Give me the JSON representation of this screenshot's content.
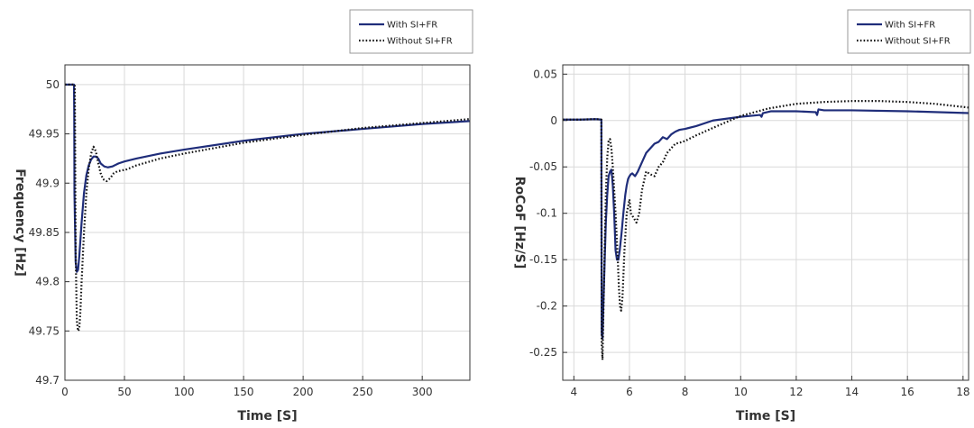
{
  "chart_data": [
    {
      "type": "line",
      "xlabel": "Time [S]",
      "ylabel": "Frequency [Hz]",
      "xlim": [
        0,
        340
      ],
      "ylim": [
        49.7,
        50.02
      ],
      "xticks": [
        0,
        50,
        100,
        150,
        200,
        250,
        300
      ],
      "yticks": [
        49.7,
        49.75,
        49.8,
        49.85,
        49.9,
        49.95,
        50
      ],
      "ytick_labels": [
        "49.7",
        "49.75",
        "49.8",
        "49.85",
        "49.9",
        "49.95",
        "50"
      ],
      "grid": true,
      "legend_position": "top-right-outside",
      "colors": {
        "with": "#1f2d7a",
        "without": "#111111"
      },
      "series": [
        {
          "name": "With SI+FR",
          "style": "solid",
          "x": [
            0,
            7.6,
            7.8,
            8,
            9,
            10,
            11,
            12,
            14,
            16,
            18,
            20,
            22,
            24,
            26,
            28,
            30,
            33,
            36,
            40,
            45,
            50,
            60,
            80,
            100,
            150,
            200,
            250,
            300,
            340
          ],
          "y": [
            50,
            50,
            49.97,
            49.89,
            49.82,
            49.81,
            49.812,
            49.825,
            49.86,
            49.89,
            49.908,
            49.918,
            49.924,
            49.927,
            49.927,
            49.925,
            49.92,
            49.917,
            49.916,
            49.917,
            49.92,
            49.922,
            49.925,
            49.93,
            49.934,
            49.943,
            49.95,
            49.955,
            49.96,
            49.963
          ]
        },
        {
          "name": "Without SI+FR",
          "style": "dotted",
          "x": [
            0,
            8.3,
            8.6,
            9,
            10,
            11,
            12,
            13,
            14,
            16,
            18,
            20,
            22,
            24,
            26,
            28,
            30,
            32,
            35,
            38,
            41,
            44,
            48,
            52,
            60,
            80,
            100,
            150,
            200,
            250,
            300,
            340
          ],
          "y": [
            50,
            50,
            49.93,
            49.83,
            49.76,
            49.75,
            49.752,
            49.77,
            49.8,
            49.85,
            49.89,
            49.915,
            49.93,
            49.937,
            49.932,
            49.92,
            49.91,
            49.904,
            49.902,
            49.905,
            49.91,
            49.912,
            49.913,
            49.914,
            49.918,
            49.925,
            49.93,
            49.941,
            49.949,
            49.956,
            49.961,
            49.965
          ]
        }
      ]
    },
    {
      "type": "line",
      "xlabel": "Time [S]",
      "ylabel": "RoCoF [Hz/S]",
      "xlim": [
        3.6,
        18.2
      ],
      "ylim": [
        -0.28,
        0.06
      ],
      "xticks": [
        4,
        6,
        8,
        10,
        12,
        14,
        16,
        18
      ],
      "yticks": [
        -0.25,
        -0.2,
        -0.15,
        -0.1,
        -0.05,
        0,
        0.05
      ],
      "ytick_labels": [
        "-0.25",
        "-0.2",
        "-0.15",
        "-0.1",
        "-0.05",
        "0",
        "0.05"
      ],
      "grid": true,
      "legend_position": "top-right-outside",
      "colors": {
        "with": "#1f2d7a",
        "without": "#111111"
      },
      "series": [
        {
          "name": "With SI+FR",
          "style": "solid",
          "x": [
            3.6,
            4.2,
            4.8,
            4.99,
            5.0,
            5.03,
            5.06,
            5.1,
            5.15,
            5.2,
            5.25,
            5.3,
            5.35,
            5.4,
            5.45,
            5.5,
            5.55,
            5.6,
            5.65,
            5.72,
            5.78,
            5.85,
            5.9,
            5.95,
            6.0,
            6.05,
            6.1,
            6.2,
            6.3,
            6.45,
            6.6,
            6.75,
            6.9,
            7.05,
            7.2,
            7.35,
            7.5,
            7.65,
            7.8,
            8.0,
            8.4,
            9.0,
            10.0,
            10.7,
            10.75,
            10.8,
            11.1,
            11.4,
            12.0,
            12.7,
            12.75,
            12.8,
            13.0,
            14.0,
            16.0,
            18.2
          ],
          "y": [
            0.001,
            0.001,
            0.0015,
            0.001,
            -0.23,
            -0.235,
            -0.2,
            -0.16,
            -0.11,
            -0.08,
            -0.06,
            -0.055,
            -0.053,
            -0.07,
            -0.1,
            -0.14,
            -0.15,
            -0.15,
            -0.14,
            -0.12,
            -0.1,
            -0.08,
            -0.07,
            -0.063,
            -0.06,
            -0.058,
            -0.057,
            -0.06,
            -0.055,
            -0.045,
            -0.035,
            -0.03,
            -0.025,
            -0.023,
            -0.018,
            -0.02,
            -0.015,
            -0.012,
            -0.01,
            -0.009,
            -0.006,
            0.0,
            0.004,
            0.006,
            0.004,
            0.008,
            0.01,
            0.01,
            0.01,
            0.009,
            0.006,
            0.012,
            0.011,
            0.011,
            0.01,
            0.008
          ]
        },
        {
          "name": "Without SI+FR",
          "style": "dotted",
          "x": [
            3.6,
            4.2,
            4.8,
            4.99,
            5.0,
            5.03,
            5.06,
            5.1,
            5.15,
            5.2,
            5.25,
            5.3,
            5.35,
            5.4,
            5.5,
            5.58,
            5.62,
            5.66,
            5.7,
            5.75,
            5.82,
            5.9,
            6.0,
            6.05,
            6.15,
            6.25,
            6.35,
            6.45,
            6.6,
            6.75,
            6.9,
            7.05,
            7.2,
            7.35,
            7.5,
            7.65,
            7.8,
            8.0,
            8.4,
            9.0,
            10.0,
            11.0,
            12.0,
            13.0,
            14.0,
            15.0,
            16.0,
            17.0,
            18.2
          ],
          "y": [
            0.001,
            0.001,
            0.0015,
            0.001,
            -0.24,
            -0.258,
            -0.21,
            -0.15,
            -0.08,
            -0.04,
            -0.022,
            -0.02,
            -0.03,
            -0.05,
            -0.1,
            -0.15,
            -0.18,
            -0.2,
            -0.205,
            -0.19,
            -0.14,
            -0.1,
            -0.085,
            -0.1,
            -0.105,
            -0.11,
            -0.1,
            -0.075,
            -0.055,
            -0.058,
            -0.06,
            -0.05,
            -0.045,
            -0.035,
            -0.03,
            -0.025,
            -0.024,
            -0.022,
            -0.016,
            -0.008,
            0.005,
            0.013,
            0.018,
            0.02,
            0.021,
            0.021,
            0.02,
            0.018,
            0.014
          ]
        }
      ]
    }
  ]
}
